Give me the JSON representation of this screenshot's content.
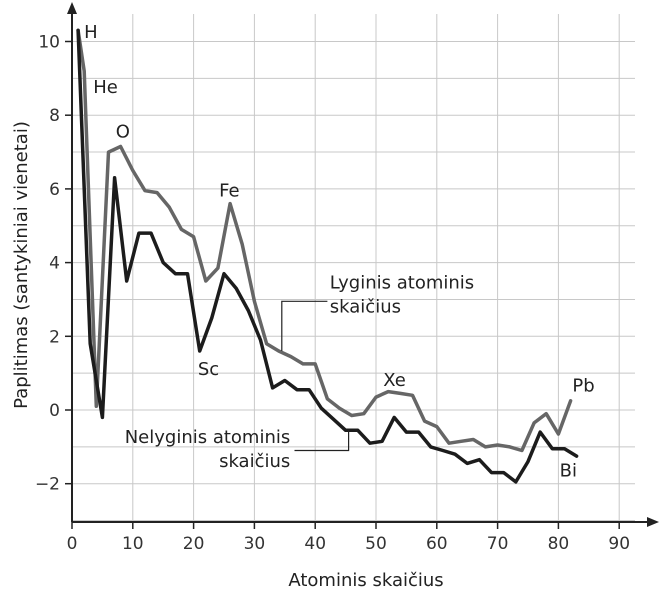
{
  "chart_data": {
    "type": "line",
    "xlabel": "Atominis skaičius",
    "ylabel": "Paplitimas (santykiniai vienetai)",
    "xlim": [
      0,
      95
    ],
    "ylim": [
      -3,
      11
    ],
    "x_ticks": [
      0,
      10,
      20,
      30,
      40,
      50,
      60,
      70,
      80,
      90
    ],
    "y_ticks": [
      -2,
      0,
      2,
      4,
      6,
      8,
      10
    ],
    "y_tick_labels": [
      "−2",
      "0",
      "2",
      "4",
      "6",
      "8",
      "10"
    ],
    "grid": true,
    "colors": {
      "even": "#666666",
      "odd": "#1c1c1c",
      "grid": "#c8c8c8",
      "axis": "#222222"
    },
    "series": [
      {
        "name": "Lyginis atominis skaičius",
        "x": [
          1,
          2,
          4,
          6,
          8,
          10,
          12,
          14,
          16,
          18,
          20,
          22,
          24,
          26,
          28,
          30,
          32,
          34,
          36,
          38,
          40,
          42,
          44,
          46,
          48,
          50,
          52,
          54,
          56,
          58,
          60,
          62,
          64,
          66,
          68,
          70,
          72,
          74,
          76,
          78,
          80,
          82
        ],
        "y": [
          10.3,
          9.2,
          0.1,
          7.0,
          7.15,
          6.5,
          5.95,
          5.9,
          5.5,
          4.9,
          4.7,
          3.5,
          3.85,
          5.6,
          4.5,
          2.95,
          1.8,
          1.6,
          1.45,
          1.25,
          1.25,
          0.3,
          0.05,
          -0.15,
          -0.1,
          0.35,
          0.5,
          0.45,
          0.4,
          -0.3,
          -0.45,
          -0.9,
          -0.85,
          -0.8,
          -1.0,
          -0.95,
          -1.0,
          -1.1,
          -0.35,
          -0.1,
          -0.65,
          0.25
        ]
      },
      {
        "name": "Nelyginis atominis skaičius",
        "x": [
          1,
          3,
          5,
          7,
          9,
          11,
          13,
          15,
          17,
          19,
          21,
          23,
          25,
          27,
          29,
          31,
          33,
          35,
          37,
          39,
          41,
          43,
          45,
          47,
          49,
          51,
          53,
          55,
          57,
          59,
          61,
          63,
          65,
          67,
          69,
          71,
          73,
          75,
          77,
          79,
          81,
          83
        ],
        "y": [
          10.3,
          1.8,
          -0.2,
          6.3,
          3.5,
          4.8,
          4.8,
          4.0,
          3.7,
          3.7,
          1.6,
          2.5,
          3.7,
          3.3,
          2.7,
          1.9,
          0.6,
          0.8,
          0.55,
          0.55,
          0.05,
          -0.25,
          -0.55,
          -0.55,
          -0.9,
          -0.85,
          -0.2,
          -0.6,
          -0.6,
          -1.0,
          -1.1,
          -1.2,
          -1.45,
          -1.35,
          -1.7,
          -1.7,
          -1.95,
          -1.4,
          -0.6,
          -1.05,
          -1.05,
          -1.25
        ]
      }
    ],
    "annotations": [
      {
        "text": "H",
        "x": 2,
        "y": 10.1
      },
      {
        "text": "He",
        "x": 3.5,
        "y": 8.6
      },
      {
        "text": "O",
        "x": 7.2,
        "y": 7.4
      },
      {
        "text": "Fe",
        "x": 24.2,
        "y": 5.8
      },
      {
        "text": "Sc",
        "x": 20.7,
        "y": 0.95
      },
      {
        "text": "Xe",
        "x": 51.2,
        "y": 0.65
      },
      {
        "text": "Pb",
        "x": 82.3,
        "y": 0.5
      },
      {
        "text": "Bi",
        "x": 80.2,
        "y": -1.8
      }
    ],
    "callouts": [
      {
        "lines": [
          "Lyginis atominis",
          "skaičius"
        ],
        "text_x": 42.4,
        "text_y": 3.3,
        "anchor": "start",
        "target": [
          34.5,
          1.6
        ],
        "path": [
          [
            42,
            2.95
          ],
          [
            34.5,
            2.95
          ],
          [
            34.5,
            1.6
          ]
        ]
      },
      {
        "lines": [
          "Nelyginis atominis",
          "skaičius"
        ],
        "text_x": 35.9,
        "text_y": -0.9,
        "anchor": "end",
        "target": [
          45.5,
          -0.55
        ],
        "path": [
          [
            36.6,
            -1.1
          ],
          [
            45.5,
            -1.1
          ],
          [
            45.5,
            -0.55
          ]
        ]
      }
    ]
  }
}
